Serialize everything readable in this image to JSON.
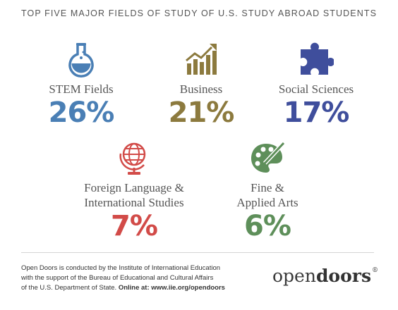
{
  "title": "TOP FIVE MAJOR FIELDS OF STUDY OF U.S. STUDY ABROAD STUDENTS",
  "chart_data": {
    "type": "table",
    "title": "TOP FIVE MAJOR FIELDS OF STUDY OF U.S. STUDY ABROAD STUDENTS",
    "items": [
      {
        "label": "STEM Fields",
        "value": "26%",
        "color": "#4a7fb5",
        "icon": "flask-icon"
      },
      {
        "label": "Business",
        "value": "21%",
        "color": "#8c7a3e",
        "icon": "rising-bar-chart-icon"
      },
      {
        "label": "Social Sciences",
        "value": "17%",
        "color": "#3f4e9c",
        "icon": "puzzle-piece-icon"
      },
      {
        "label_lines": [
          "Foreign Language &",
          "International Studies"
        ],
        "value": "7%",
        "color": "#d24b48",
        "icon": "globe-icon"
      },
      {
        "label_lines": [
          "Fine &",
          "Applied Arts"
        ],
        "value": "6%",
        "color": "#5e8f5a",
        "icon": "paint-palette-icon"
      }
    ]
  },
  "footer": {
    "line1": "Open Doors is conducted by the Institute of International Education",
    "line2": "with the support of the Bureau of Educational and Cultural Affairs",
    "line3_start": "of the U.S. Department of State. ",
    "line3_bold": "Online at: www.iie.org/opendoors"
  },
  "logo": {
    "regular": "open",
    "bold": "doors",
    "mark": "®"
  }
}
